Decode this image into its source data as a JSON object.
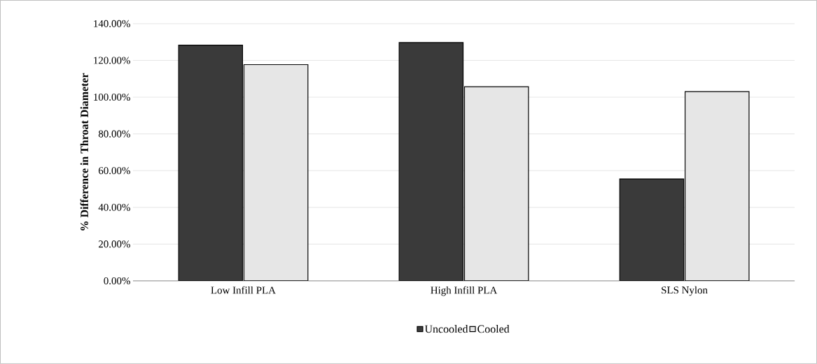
{
  "chart_data": {
    "type": "bar",
    "ylabel": "% Difference in Throat Diameter",
    "categories": [
      "Low Infill PLA",
      "High Infill PLA",
      "SLS Nylon"
    ],
    "series": [
      {
        "name": "Uncooled",
        "color": "#3a3a3a",
        "values": [
          128.3,
          129.7,
          55.5
        ]
      },
      {
        "name": "Cooled",
        "color": "#e6e6e6",
        "values": [
          117.7,
          105.7,
          103.0
        ]
      }
    ],
    "ylim": [
      0,
      140
    ],
    "yticks": [
      {
        "value": 0,
        "label": "0.00%"
      },
      {
        "value": 20,
        "label": "20.00%"
      },
      {
        "value": 40,
        "label": "40.00%"
      },
      {
        "value": 60,
        "label": "60.00%"
      },
      {
        "value": 80,
        "label": "80.00%"
      },
      {
        "value": 100,
        "label": "100.00%"
      },
      {
        "value": 120,
        "label": "120.00%"
      },
      {
        "value": 140,
        "label": "140.00%"
      }
    ],
    "grid": "y",
    "legend": "bottom"
  }
}
